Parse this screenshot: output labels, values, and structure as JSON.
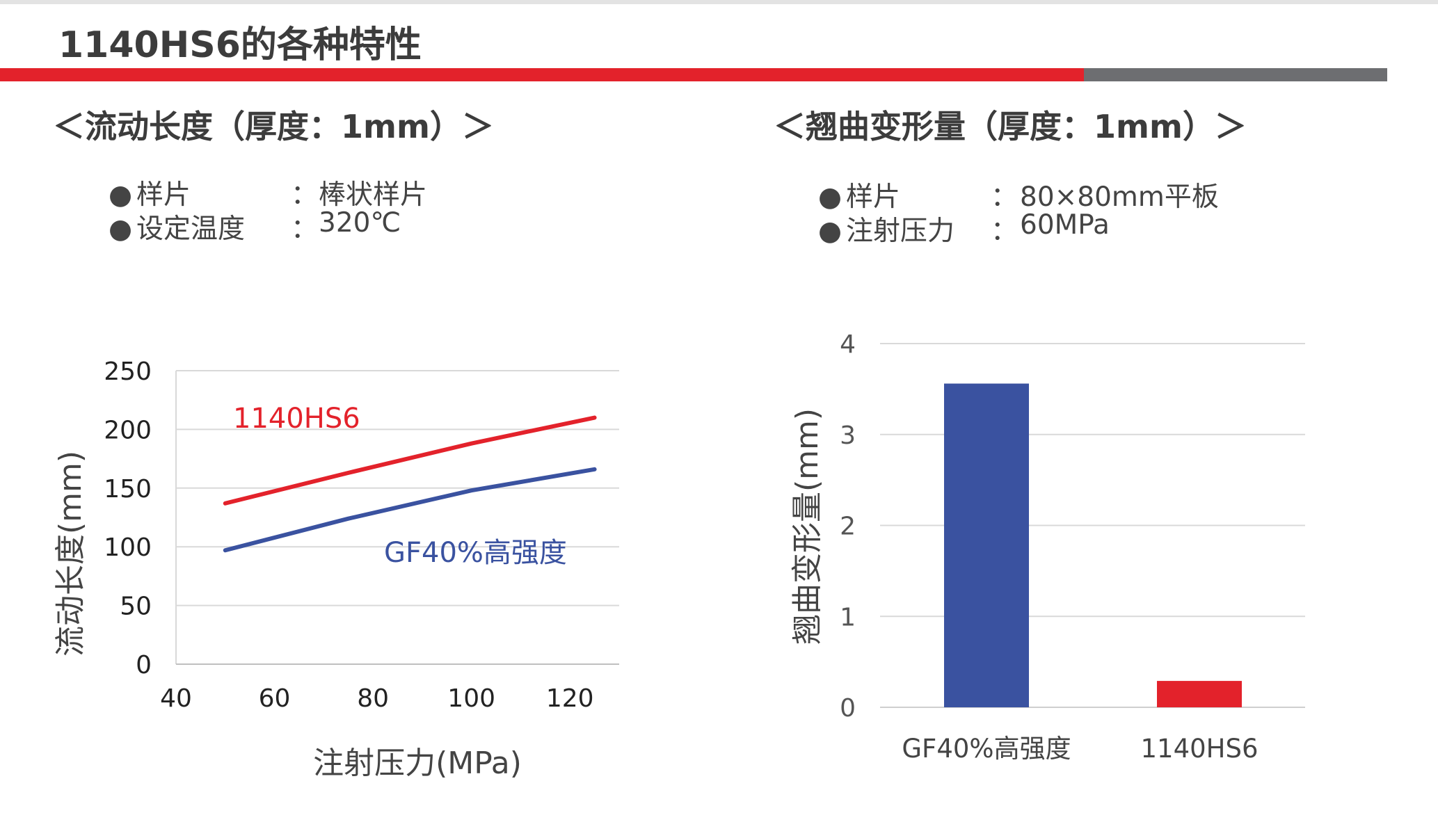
{
  "page": {
    "title": "1140HS6的各种特性",
    "colors": {
      "accent_red": "#e3222b",
      "accent_gray": "#6d6e71",
      "blue": "#3a52a0",
      "grid": "#d9d9d9"
    }
  },
  "flow_section": {
    "title": "＜流动长度（厚度：1mm）＞",
    "conditions": [
      {
        "bullet": "●",
        "label": "样片",
        "sep": "：",
        "value": "棒状样片"
      },
      {
        "bullet": "●",
        "label": "设定温度",
        "sep": "：",
        "value": "320℃"
      }
    ]
  },
  "warp_section": {
    "title": "＜翘曲变形量（厚度：1mm）＞",
    "conditions": [
      {
        "bullet": "●",
        "label": "样片",
        "sep": "：",
        "value": "80×80mm平板"
      },
      {
        "bullet": "●",
        "label": "注射压力",
        "sep": "：",
        "value": "60MPa"
      }
    ]
  },
  "chart_data": [
    {
      "type": "line",
      "title": "",
      "xlabel": "注射压力(MPa)",
      "ylabel": "流动长度(mm)",
      "xlim": [
        40,
        130
      ],
      "ylim": [
        0,
        250
      ],
      "xticks": [
        40,
        60,
        80,
        100,
        120
      ],
      "yticks": [
        0,
        50,
        100,
        150,
        200,
        250
      ],
      "grid": true,
      "legend": "inline labels",
      "series": [
        {
          "name": "1140HS6",
          "color": "#e3222b",
          "x": [
            50,
            75,
            100,
            125
          ],
          "y": [
            137,
            163,
            188,
            210
          ]
        },
        {
          "name": "GF40%高强度",
          "color": "#3a52a0",
          "x": [
            50,
            75,
            100,
            125
          ],
          "y": [
            97,
            124,
            148,
            166
          ]
        }
      ]
    },
    {
      "type": "bar",
      "title": "",
      "xlabel": "",
      "ylabel": "翘曲变形量(mm)",
      "ylim": [
        0,
        4
      ],
      "yticks": [
        0,
        1,
        2,
        3,
        4
      ],
      "grid": true,
      "categories": [
        "GF40%高强度",
        "1140HS6"
      ],
      "values": [
        3.56,
        0.29
      ],
      "colors": [
        "#3a52a0",
        "#e3222b"
      ]
    }
  ]
}
